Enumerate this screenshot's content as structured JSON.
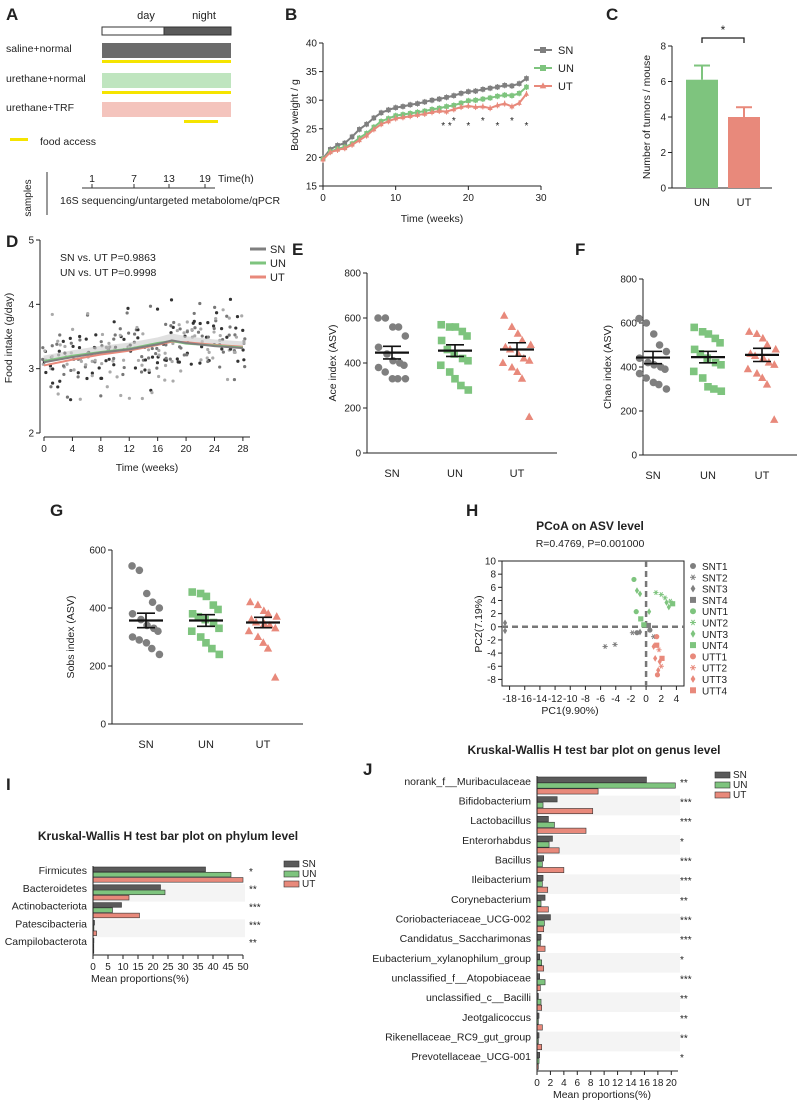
{
  "colors": {
    "SN": "#7f7f7f",
    "UN": "#7ec47e",
    "UT": "#e8897b",
    "dark": "#5a5a5a",
    "green": "#9fd49f",
    "pink": "#f0b3aa",
    "yellow": "#f5e400"
  },
  "panel_labels": [
    "A",
    "B",
    "C",
    "D",
    "E",
    "F",
    "G",
    "H",
    "I",
    "J"
  ],
  "panelA": {
    "day": "day",
    "night": "night",
    "groups": [
      "saline+normal",
      "urethane+normal",
      "urethane+TRF"
    ],
    "food_access": "food access",
    "samples": "samples",
    "timeline": {
      "ticks": [
        "1",
        "7",
        "13",
        "19"
      ],
      "unit": "Time(h)"
    },
    "methods": "16S sequencing/untargeted metabolome/qPCR"
  },
  "chart_data": [
    {
      "id": "B",
      "type": "line",
      "ylabel": "Body weight / g",
      "xlabel": "Time (weeks)",
      "xlim": [
        0,
        30
      ],
      "ylim": [
        15,
        40
      ],
      "xticks": [
        0,
        10,
        20,
        30
      ],
      "yticks": [
        15,
        20,
        25,
        30,
        35,
        40
      ],
      "legend": [
        "SN",
        "UN",
        "UT"
      ],
      "series": [
        {
          "name": "SN",
          "x": [
            0,
            1,
            2,
            3,
            4,
            5,
            6,
            7,
            8,
            9,
            10,
            11,
            12,
            13,
            14,
            15,
            16,
            17,
            18,
            19,
            20,
            21,
            22,
            23,
            24,
            25,
            26,
            27,
            28
          ],
          "values": [
            19.8,
            21.4,
            22.1,
            22.5,
            23.6,
            24.9,
            25.8,
            26.9,
            27.8,
            28.3,
            28.7,
            28.9,
            29.2,
            29.4,
            29.7,
            30.0,
            30.2,
            30.5,
            30.8,
            31.2,
            31.5,
            31.6,
            31.9,
            32.1,
            32.3,
            32.6,
            32.5,
            32.9,
            33.8
          ]
        },
        {
          "name": "UN",
          "x": [
            0,
            1,
            2,
            3,
            4,
            5,
            6,
            7,
            8,
            9,
            10,
            11,
            12,
            13,
            14,
            15,
            16,
            17,
            18,
            19,
            20,
            21,
            22,
            23,
            24,
            25,
            26,
            27,
            28
          ],
          "values": [
            19.7,
            21.0,
            21.5,
            21.8,
            22.4,
            23.4,
            24.2,
            25.3,
            26.3,
            26.8,
            27.3,
            27.5,
            27.7,
            27.9,
            28.1,
            28.4,
            28.6,
            28.9,
            29.1,
            29.5,
            29.9,
            30.0,
            30.2,
            30.4,
            30.7,
            30.9,
            30.8,
            31.2,
            32.3
          ]
        },
        {
          "name": "UT",
          "x": [
            0,
            1,
            2,
            3,
            4,
            5,
            6,
            7,
            8,
            9,
            10,
            11,
            12,
            13,
            14,
            15,
            16,
            17,
            18,
            19,
            20,
            21,
            22,
            23,
            24,
            25,
            26,
            27,
            28
          ],
          "values": [
            19.6,
            20.9,
            21.3,
            21.6,
            22.2,
            23.0,
            23.8,
            24.9,
            25.8,
            26.3,
            26.8,
            27.0,
            27.2,
            27.4,
            27.6,
            27.9,
            28.1,
            28.0,
            28.4,
            28.8,
            29.0,
            28.8,
            28.9,
            28.6,
            29.1,
            29.4,
            28.9,
            29.5,
            31.1
          ]
        }
      ],
      "significance": [
        {
          "x": 17,
          "label": "* *"
        },
        {
          "x": 18,
          "label": "*"
        },
        {
          "x": 20,
          "label": "*"
        },
        {
          "x": 22,
          "label": "*"
        },
        {
          "x": 24,
          "label": "*"
        },
        {
          "x": 26,
          "label": "*"
        },
        {
          "x": 28,
          "label": "*"
        }
      ]
    },
    {
      "id": "C",
      "type": "bar",
      "ylabel": "Number of tumors / mouse",
      "categories": [
        "UN",
        "UT"
      ],
      "values": [
        6.1,
        4.0
      ],
      "errors": [
        0.8,
        0.55
      ],
      "ylim": [
        0,
        8
      ],
      "yticks": [
        0,
        2,
        4,
        6,
        8
      ],
      "significance": "*"
    },
    {
      "id": "D",
      "type": "scatter",
      "ylabel": "Food intake (g/day)",
      "xlabel": "Time (weeks)",
      "xlim": [
        0,
        29
      ],
      "ylim": [
        2,
        5
      ],
      "xticks": [
        0,
        4,
        8,
        12,
        16,
        20,
        24,
        28
      ],
      "yticks": [
        2,
        3,
        4,
        5
      ],
      "annotations": [
        "SN vs. UT   P=0.9863",
        "UN vs. UT   P=0.9998"
      ],
      "legend": [
        "SN",
        "UN",
        "UT"
      ],
      "trend": {
        "x": [
          0,
          4,
          8,
          12,
          16,
          18,
          20,
          24,
          28
        ],
        "SN": [
          3.1,
          3.18,
          3.25,
          3.3,
          3.38,
          3.44,
          3.4,
          3.35,
          3.32
        ],
        "UN": [
          3.12,
          3.2,
          3.26,
          3.31,
          3.4,
          3.43,
          3.39,
          3.36,
          3.33
        ],
        "UT": [
          3.05,
          3.14,
          3.22,
          3.28,
          3.37,
          3.42,
          3.41,
          3.37,
          3.34
        ]
      }
    },
    {
      "id": "E",
      "type": "scatter",
      "ylabel": "Ace index (ASV)",
      "categories": [
        "SN",
        "UN",
        "UT"
      ],
      "ylim": [
        0,
        800
      ],
      "yticks": [
        0,
        200,
        400,
        600,
        800
      ],
      "means": [
        446,
        455,
        460
      ],
      "sems": [
        28,
        26,
        30
      ],
      "points": {
        "SN": [
          600,
          600,
          560,
          560,
          520,
          470,
          440,
          410,
          400,
          390,
          380,
          360,
          330,
          330,
          330
        ],
        "UN": [
          570,
          560,
          560,
          540,
          520,
          500,
          460,
          440,
          420,
          410,
          390,
          360,
          330,
          300,
          280
        ],
        "UT": [
          610,
          560,
          530,
          500,
          480,
          470,
          460,
          440,
          420,
          410,
          400,
          380,
          360,
          330,
          160
        ]
      }
    },
    {
      "id": "F",
      "type": "scatter",
      "ylabel": "Chao index (ASV)",
      "categories": [
        "SN",
        "UN",
        "UT"
      ],
      "ylim": [
        0,
        800
      ],
      "yticks": [
        0,
        200,
        400,
        600,
        800
      ],
      "means": [
        443,
        445,
        455
      ],
      "sems": [
        28,
        26,
        30
      ],
      "points": {
        "SN": [
          620,
          600,
          550,
          500,
          470,
          440,
          420,
          410,
          400,
          390,
          370,
          350,
          330,
          320,
          300
        ],
        "UN": [
          580,
          560,
          550,
          530,
          510,
          480,
          460,
          440,
          420,
          410,
          380,
          350,
          310,
          300,
          290
        ],
        "UT": [
          560,
          550,
          530,
          500,
          480,
          460,
          450,
          440,
          420,
          410,
          390,
          370,
          350,
          320,
          160
        ]
      }
    },
    {
      "id": "G",
      "type": "scatter",
      "ylabel": "Sobs index (ASV)",
      "categories": [
        "SN",
        "UN",
        "UT"
      ],
      "ylim": [
        0,
        600
      ],
      "yticks": [
        0,
        200,
        400,
        600
      ],
      "means": [
        357,
        357,
        350
      ],
      "sems": [
        25,
        20,
        18
      ],
      "points": {
        "SN": [
          545,
          530,
          450,
          420,
          400,
          380,
          360,
          340,
          330,
          320,
          300,
          290,
          280,
          260,
          240
        ],
        "UN": [
          455,
          450,
          440,
          410,
          395,
          380,
          370,
          360,
          350,
          330,
          320,
          300,
          280,
          260,
          240
        ],
        "UT": [
          420,
          410,
          390,
          380,
          370,
          360,
          350,
          345,
          340,
          330,
          320,
          300,
          280,
          260,
          160
        ]
      }
    },
    {
      "id": "H",
      "type": "scatter",
      "title": "PCoA on ASV level",
      "subtitle": "R=0.4769, P=0.001000",
      "xlabel": "PC1(9.90%)",
      "ylabel": "PC2(7.19%)",
      "xlim": [
        -19,
        5
      ],
      "ylim": [
        -9,
        10
      ],
      "xticks": [
        -18,
        -16,
        -14,
        -12,
        -10,
        -8,
        -6,
        -4,
        -2,
        0,
        2,
        4
      ],
      "xticklabels": [
        "-18",
        "-16",
        "-14",
        "-12",
        "-10",
        "-8",
        "-6",
        "-4",
        "-2",
        "0",
        "2",
        "4"
      ],
      "yticks": [
        -8,
        -6,
        -4,
        -2,
        0,
        2,
        4,
        6,
        8,
        10
      ],
      "legend": [
        "SNT1",
        "SNT2",
        "SNT3",
        "SNT4",
        "UNT1",
        "UNT2",
        "UNT3",
        "UNT4",
        "UTT1",
        "UTT2",
        "UTT3",
        "UTT4"
      ],
      "points": [
        {
          "g": "SNT3",
          "x": -18.6,
          "y": 0.6
        },
        {
          "g": "SNT3",
          "x": -18.6,
          "y": -0.6
        },
        {
          "g": "SNT2",
          "x": -5.4,
          "y": -3.0
        },
        {
          "g": "SNT2",
          "x": -4.1,
          "y": -2.7
        },
        {
          "g": "SNT2",
          "x": -1.8,
          "y": -0.9
        },
        {
          "g": "SNT1",
          "x": -1.2,
          "y": -0.9
        },
        {
          "g": "SNT3",
          "x": -0.8,
          "y": -0.8
        },
        {
          "g": "SNT4",
          "x": 0.3,
          "y": 0.2
        },
        {
          "g": "SNT1",
          "x": 0.5,
          "y": -0.5
        },
        {
          "g": "SNT2",
          "x": 1.0,
          "y": -1.5
        },
        {
          "g": "UNT1",
          "x": -1.6,
          "y": 7.2
        },
        {
          "g": "UNT3",
          "x": -1.2,
          "y": 5.5
        },
        {
          "g": "UNT3",
          "x": -0.8,
          "y": 5.0
        },
        {
          "g": "UNT2",
          "x": 1.3,
          "y": 5.2
        },
        {
          "g": "UNT2",
          "x": 2.0,
          "y": 4.9
        },
        {
          "g": "UNT2",
          "x": 2.5,
          "y": 4.4
        },
        {
          "g": "UNT3",
          "x": 2.7,
          "y": 3.7
        },
        {
          "g": "UNT2",
          "x": 3.2,
          "y": 3.9
        },
        {
          "g": "UNT3",
          "x": 3.0,
          "y": 3.0
        },
        {
          "g": "UNT4",
          "x": 3.5,
          "y": 3.5
        },
        {
          "g": "UNT1",
          "x": -1.3,
          "y": 2.3
        },
        {
          "g": "UNT4",
          "x": -0.7,
          "y": 1.2
        },
        {
          "g": "UNT3",
          "x": 0.4,
          "y": 2.3
        },
        {
          "g": "UNT4",
          "x": -0.3,
          "y": 0.3
        },
        {
          "g": "UTT1",
          "x": 1.4,
          "y": -1.5
        },
        {
          "g": "UTT3",
          "x": 1.0,
          "y": -3.0
        },
        {
          "g": "UTT4",
          "x": 1.4,
          "y": -2.8
        },
        {
          "g": "UTT2",
          "x": 1.7,
          "y": -3.5
        },
        {
          "g": "UTT3",
          "x": 1.2,
          "y": -4.8
        },
        {
          "g": "UTT3",
          "x": 1.8,
          "y": -5.3
        },
        {
          "g": "UTT2",
          "x": 2.0,
          "y": -6.0
        },
        {
          "g": "UTT3",
          "x": 1.6,
          "y": -6.6
        },
        {
          "g": "UTT1",
          "x": 1.5,
          "y": -7.3
        },
        {
          "g": "UTT4",
          "x": 2.1,
          "y": -4.8
        }
      ]
    },
    {
      "id": "I",
      "type": "bar",
      "orientation": "horizontal",
      "title": "Kruskal-Wallis H test bar plot on phylum level",
      "xlabel": "Mean proportions(%)",
      "xlim": [
        0,
        50
      ],
      "xticks": [
        0,
        5,
        10,
        15,
        20,
        25,
        30,
        35,
        40,
        45,
        50
      ],
      "categories": [
        "Firmicutes",
        "Bacteroidetes",
        "Actinobacteriota",
        "Patescibacteria",
        "Campilobacterota"
      ],
      "significance": [
        "*",
        "**",
        "***",
        "***",
        "**"
      ],
      "legend": [
        "SN",
        "UN",
        "UT"
      ],
      "series": [
        {
          "name": "SN",
          "values": [
            37.5,
            22.5,
            9.5,
            0.5,
            0.3
          ]
        },
        {
          "name": "UN",
          "values": [
            46,
            24,
            6.5,
            0.3,
            0.2
          ]
        },
        {
          "name": "UT",
          "values": [
            50,
            12,
            15.5,
            1.2,
            0.1
          ]
        }
      ]
    },
    {
      "id": "J",
      "type": "bar",
      "orientation": "horizontal",
      "title": "Kruskal-Wallis H test bar plot on genus level",
      "xlabel": "Mean proportions(%)",
      "xlim": [
        0,
        21
      ],
      "xticks": [
        0,
        2,
        4,
        6,
        8,
        10,
        12,
        14,
        16,
        18,
        20
      ],
      "categories": [
        "norank_f__Muribaculaceae",
        "Bifidobacterium",
        "Lactobacillus",
        "Enterorhabdus",
        "Bacillus",
        "Ileibacterium",
        "Corynebacterium",
        "Coriobacteriaceae_UCG-002",
        "Candidatus_Saccharimonas",
        "Eubacterium_xylanophilum_group",
        "unclassified_f__Atopobiaceae",
        "unclassified_c__Bacilli",
        "Jeotgalicoccus",
        "Rikenellaceae_RC9_gut_group",
        "Prevotellaceae_UCG-001"
      ],
      "significance": [
        "**",
        "***",
        "***",
        "*",
        "***",
        "***",
        "**",
        "***",
        "***",
        "*",
        "***",
        "**",
        "**",
        "**",
        "*"
      ],
      "legend": [
        "SN",
        "UN",
        "UT"
      ],
      "series": [
        {
          "name": "SN",
          "values": [
            16.3,
            3.0,
            1.7,
            2.3,
            1.0,
            0.9,
            1.2,
            2.0,
            0.6,
            0.4,
            0.4,
            0.2,
            0.3,
            0.3,
            0.4
          ]
        },
        {
          "name": "UN",
          "values": [
            20.6,
            0.9,
            2.6,
            1.8,
            0.8,
            0.8,
            0.6,
            1.1,
            0.5,
            0.7,
            1.2,
            0.6,
            0.2,
            0.2,
            0.3
          ]
        },
        {
          "name": "UT",
          "values": [
            9.1,
            8.3,
            7.3,
            3.3,
            4.0,
            1.6,
            1.7,
            1.0,
            1.2,
            1.0,
            0.5,
            0.7,
            0.8,
            0.7,
            0.2
          ]
        }
      ]
    }
  ]
}
